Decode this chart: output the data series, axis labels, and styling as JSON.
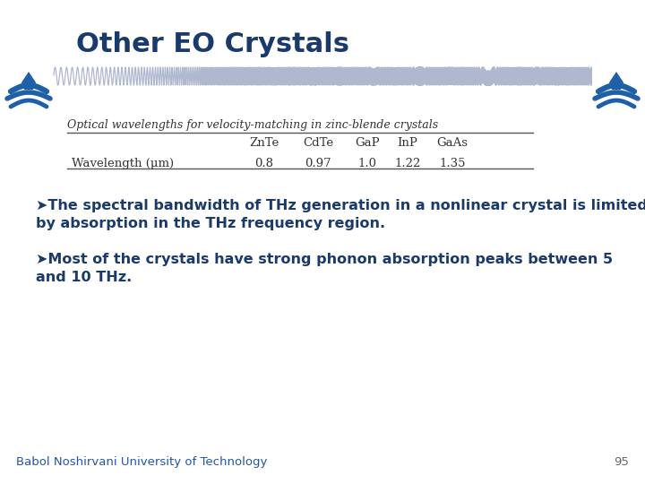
{
  "title": "Other EO Crystals",
  "title_color": "#1a3a6b",
  "title_fontsize": 22,
  "background_color": "#ffffff",
  "table_title": "Optical wavelengths for velocity-matching in zinc-blende crystals",
  "table_cols": [
    "ZnTe",
    "CdTe",
    "GaP",
    "InP",
    "GaAs"
  ],
  "table_row_label": "Wavelength (μm)",
  "table_values": [
    "0.8",
    "0.97",
    "1.0",
    "1.22",
    "1.35"
  ],
  "bullet1_line1": "➤The spectral bandwidth of THz generation in a nonlinear crystal is limited",
  "bullet1_line2": "by absorption in the THz frequency region.",
  "bullet2_line1": "➤Most of the crystals have strong phonon absorption peaks between 5",
  "bullet2_line2": "and 10 THz.",
  "bullet_color": "#1a3a6b",
  "bullet_fontsize": 11.5,
  "footer_text": "Babol Noshirvani University of Technology",
  "footer_color": "#2255aa",
  "footer_fontsize": 9.5,
  "page_number": "95",
  "wave_color": "#b0b8d0",
  "icon_color": "#1e5fa8",
  "table_text_color": "#333333",
  "table_title_fontsize": 9,
  "table_data_fontsize": 9.5
}
